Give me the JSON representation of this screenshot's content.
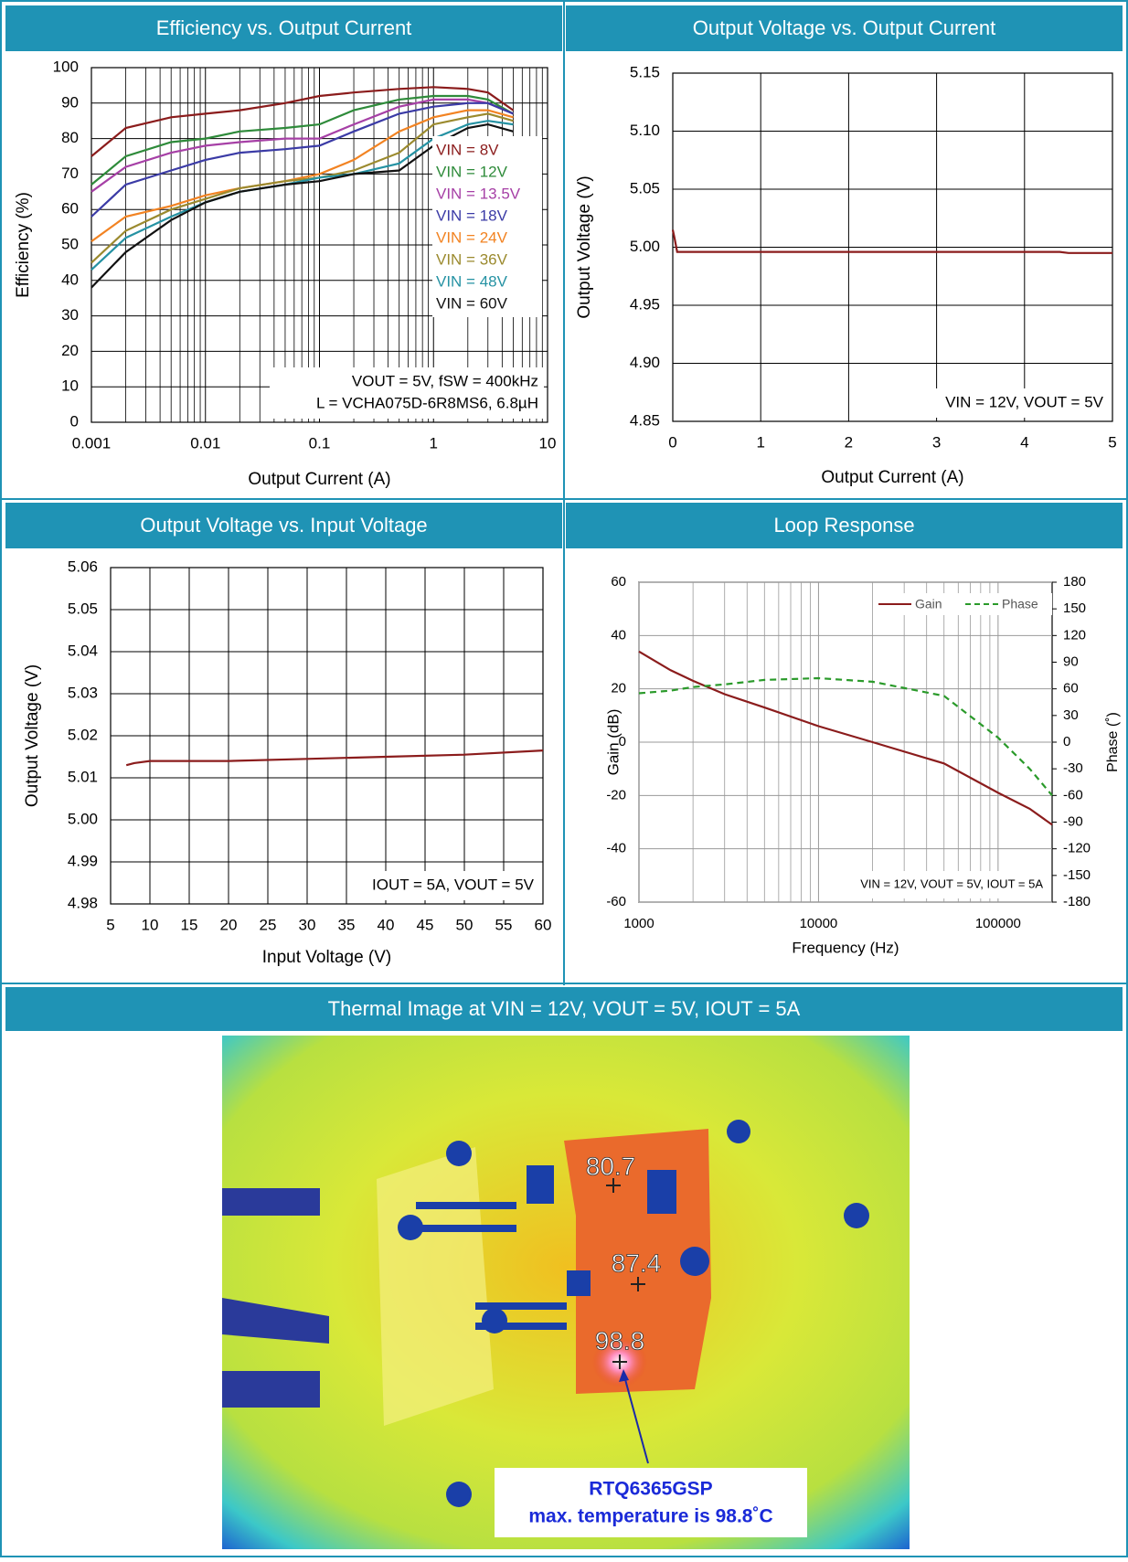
{
  "chart_data": [
    {
      "type": "line",
      "title": "Efficiency vs. Output Current",
      "x_label": "Output Current (A)",
      "y_label": "Efficiency (%)",
      "x_log": true,
      "grid": true,
      "legend": "right",
      "xlim": [
        0.001,
        10
      ],
      "xticks": [
        0.001,
        0.01,
        0.1,
        1,
        10
      ],
      "ylim": [
        0,
        100
      ],
      "yticks": [
        0,
        10,
        20,
        30,
        40,
        50,
        60,
        70,
        80,
        90,
        100
      ],
      "x": [
        0.001,
        0.002,
        0.005,
        0.01,
        0.02,
        0.05,
        0.1,
        0.2,
        0.5,
        1,
        2,
        3,
        5
      ],
      "series": [
        {
          "name": "VIN = 8V",
          "color": "#8b1c1c",
          "values": [
            75,
            83,
            86,
            87,
            88,
            90,
            92,
            93,
            94,
            94.5,
            94,
            93,
            88
          ]
        },
        {
          "name": "VIN = 12V",
          "color": "#2e8b3a",
          "values": [
            67,
            75,
            79,
            80,
            82,
            83,
            84,
            88,
            91,
            92,
            92,
            91,
            87
          ]
        },
        {
          "name": "VIN = 13.5V",
          "color": "#a640a6",
          "values": [
            65,
            72,
            76,
            78,
            79,
            80,
            80,
            84,
            89,
            91,
            91,
            90,
            87
          ]
        },
        {
          "name": "VIN = 18V",
          "color": "#3b3ba6",
          "values": [
            58,
            67,
            71,
            74,
            76,
            77,
            78,
            82,
            87,
            89,
            90,
            90,
            87
          ]
        },
        {
          "name": "VIN = 24V",
          "color": "#f28322",
          "values": [
            51,
            58,
            61,
            64,
            66,
            68,
            70,
            74,
            82,
            86,
            88,
            88,
            86
          ]
        },
        {
          "name": "VIN = 36V",
          "color": "#9b8a2e",
          "values": [
            45,
            54,
            60,
            63,
            66,
            68,
            69,
            71,
            76,
            84,
            86,
            87,
            85
          ]
        },
        {
          "name": "VIN = 48V",
          "color": "#2592a3",
          "values": [
            43,
            52,
            58,
            62,
            65,
            67,
            69,
            70,
            73,
            80,
            84,
            85,
            84
          ]
        },
        {
          "name": "VIN = 60V",
          "color": "#111111",
          "values": [
            38,
            48,
            57,
            62,
            65,
            67,
            68,
            70,
            71,
            78,
            83,
            84,
            82
          ]
        }
      ],
      "annotations": [
        "VOUT = 5V, fSW = 400kHz",
        "L = VCHA075D-6R8MS6, 6.8µH"
      ]
    },
    {
      "type": "line",
      "title": "Output Voltage vs. Output Current",
      "x_label": "Output Current (A)",
      "y_label": "Output Voltage (V)",
      "grid": true,
      "xlim": [
        0,
        5
      ],
      "xticks": [
        0,
        1,
        2,
        3,
        4,
        5
      ],
      "ylim": [
        4.85,
        5.15
      ],
      "yticks": [
        4.85,
        {
          "value": 4.9,
          "label": "4.90"
        },
        4.95,
        {
          "value": 5,
          "label": "5.00"
        },
        5.05,
        {
          "value": 5.1,
          "label": "5.10"
        },
        5.15
      ],
      "x": [
        0,
        0.02,
        0.05,
        0.1,
        1,
        2,
        3,
        4,
        4.4,
        4.5,
        5
      ],
      "values": [
        5.015,
        5.008,
        4.996,
        4.996,
        4.996,
        4.996,
        4.996,
        4.996,
        4.996,
        4.995,
        4.995
      ],
      "color": "#8b1c1c",
      "annotations": [
        "VIN = 12V, VOUT = 5V"
      ]
    },
    {
      "type": "line",
      "title": "Output Voltage vs. Input Voltage",
      "x_label": "Input Voltage (V)",
      "y_label": "Output Voltage (V)",
      "grid": true,
      "xlim": [
        5,
        60
      ],
      "xticks": [
        5,
        10,
        15,
        20,
        25,
        30,
        35,
        40,
        45,
        50,
        55,
        60
      ],
      "ylim": [
        4.98,
        5.06
      ],
      "yticks": [
        4.98,
        4.99,
        {
          "value": 5,
          "label": "5.00"
        },
        5.01,
        5.02,
        5.03,
        5.04,
        5.05,
        5.06
      ],
      "x": [
        7,
        8,
        10,
        20,
        30,
        40,
        50,
        60
      ],
      "values": [
        5.013,
        5.0135,
        5.014,
        5.014,
        5.0145,
        5.015,
        5.0155,
        5.0165
      ],
      "color": "#8b1c1c",
      "annotations": [
        "IOUT = 5A, VOUT = 5V"
      ]
    },
    {
      "type": "line",
      "title": "Loop Response",
      "x_label": "Frequency (Hz)",
      "y_label": "Gain (dB)",
      "y2_label": "Phase (˚)",
      "x_log": true,
      "grid": true,
      "legend": "upper right",
      "xlim": [
        1000,
        200000
      ],
      "xticks": [
        1000,
        10000,
        100000
      ],
      "ylim": [
        -60,
        60
      ],
      "yticks": [
        -60,
        -40,
        -20,
        0,
        20,
        40,
        60
      ],
      "y2lim": [
        -180,
        180
      ],
      "y2ticks": [
        -180,
        -150,
        -120,
        -90,
        -60,
        -30,
        0,
        30,
        60,
        90,
        120,
        150,
        180
      ],
      "x": [
        1000,
        1500,
        2000,
        3000,
        5000,
        10000,
        20000,
        50000,
        100000,
        150000,
        200000
      ],
      "series": [
        {
          "name": "Gain",
          "color": "#8b1c1c",
          "values": [
            34,
            27,
            23,
            18,
            13,
            6,
            0,
            -8,
            -19,
            -25,
            -31
          ]
        },
        {
          "name": "Phase",
          "color": "#2a9a2a",
          "dash": true,
          "axis": "y2",
          "values": [
            55,
            58,
            62,
            65,
            70,
            72,
            68,
            52,
            5,
            -30,
            -60
          ]
        }
      ],
      "annotations": [
        "VIN = 12V, VOUT = 5V, IOUT = 5A"
      ]
    }
  ],
  "thermal": {
    "title": "Thermal Image at VIN = 12V, VOUT = 5V, IOUT = 5A",
    "spots": [
      80.7,
      87.4,
      98.8
    ],
    "callout": [
      "RTQ6365GSP",
      "max. temperature is 98.8˚C"
    ]
  }
}
